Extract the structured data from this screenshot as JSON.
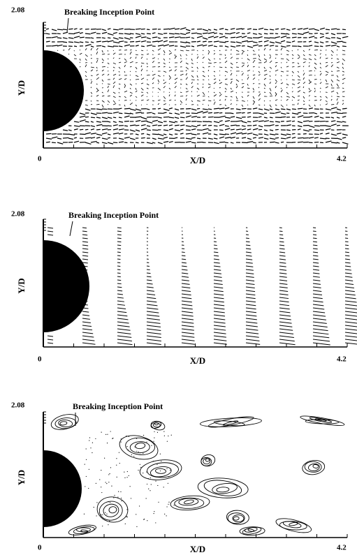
{
  "panels": [
    {
      "annotation": "Breaking Inception Point",
      "y_label": "Y/D",
      "x_label": "X/D",
      "y_top": "2.08",
      "x_start": "0",
      "x_end": "4.2"
    },
    {
      "annotation": "Breaking Inception Point",
      "y_label": "Y/D",
      "x_label": "X/D",
      "y_top": "2.08",
      "x_start": "0",
      "x_end": "4.2"
    },
    {
      "annotation": "Breaking Inception Point",
      "y_label": "Y/D",
      "x_label": "X/D",
      "y_top": "2.08",
      "x_start": "0",
      "x_end": "4.2"
    }
  ]
}
